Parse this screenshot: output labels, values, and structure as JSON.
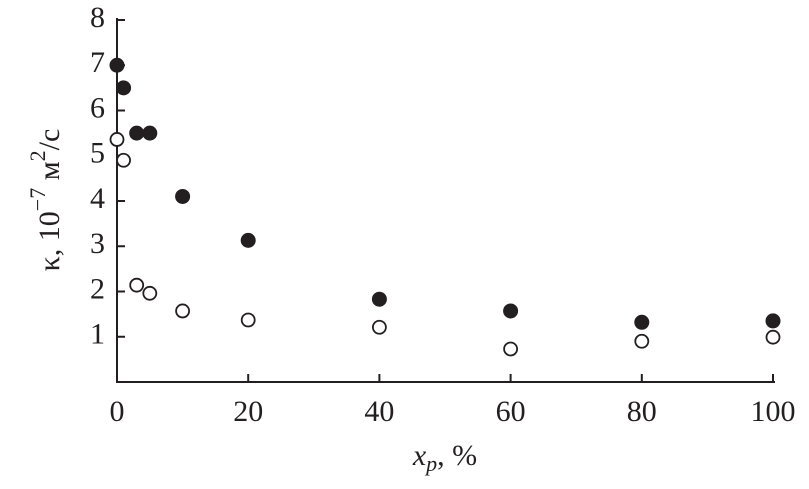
{
  "chart_data": {
    "type": "scatter",
    "x_label": [
      "x",
      "p",
      ", %"
    ],
    "y_label": [
      "κ, 10",
      "−7",
      " м",
      "2",
      "/с"
    ],
    "xlim": [
      0,
      100
    ],
    "xticks": [
      0,
      20,
      40,
      60,
      80,
      100
    ],
    "ylim": [
      0,
      8
    ],
    "yticks": [
      1,
      2,
      3,
      4,
      5,
      6,
      7,
      8
    ],
    "series": [
      {
        "color": "#231f20",
        "marker": "filled",
        "x": [
          0,
          1,
          3,
          5,
          10,
          20,
          40,
          60,
          80,
          100
        ],
        "values": [
          7.0,
          6.5,
          5.5,
          5.5,
          4.1,
          3.13,
          1.83,
          1.57,
          1.32,
          1.35
        ]
      },
      {
        "color": "#231f20",
        "marker": "open",
        "x": [
          0,
          1,
          3,
          5,
          10,
          20,
          40,
          60,
          80,
          100
        ],
        "values": [
          5.36,
          4.9,
          2.14,
          1.96,
          1.57,
          1.37,
          1.21,
          0.73,
          0.9,
          0.99
        ]
      }
    ]
  }
}
